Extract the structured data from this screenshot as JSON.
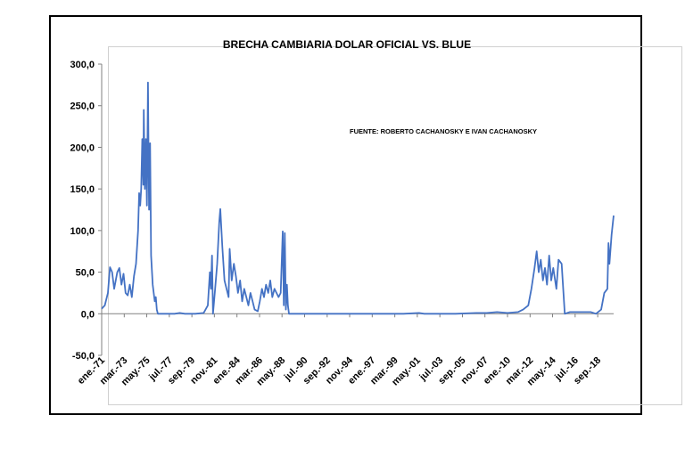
{
  "chart_data": {
    "type": "line",
    "title": "BRECHA CAMBIARIA  DOLAR OFICIAL VS. BLUE",
    "annotation": "FUENTE: ROBERTO CACHANOSKY E IVAN CACHANOSKY",
    "ylim": [
      -50,
      300
    ],
    "yticks": [
      "300,0",
      "250,0",
      "200,0",
      "150,0",
      "100,0",
      "50,0",
      "0,0",
      "-50,0"
    ],
    "ytick_values": [
      300,
      250,
      200,
      150,
      100,
      50,
      0,
      -50
    ],
    "xticks": [
      "ene.-71",
      "mar.-73",
      "may.-75",
      "jul.-77",
      "sep.-79",
      "nov.-81",
      "ene.-84",
      "mar.-86",
      "may.-88",
      "jul.-90",
      "sep.-92",
      "nov.-94",
      "ene.-97",
      "mar.-99",
      "may.-01",
      "jul.-03",
      "sep.-05",
      "nov.-07",
      "ene.-10",
      "mar.-12",
      "may.-14",
      "jul.-16",
      "sep.-18"
    ],
    "xtick_values": [
      1971.0,
      1973.17,
      1975.33,
      1977.5,
      1979.67,
      1981.83,
      1984.0,
      1986.17,
      1988.33,
      1990.5,
      1992.67,
      1994.83,
      1997.0,
      1999.17,
      2001.33,
      2003.5,
      2005.67,
      2007.83,
      2010.0,
      2012.17,
      2014.33,
      2016.5,
      2018.67
    ],
    "xlim": [
      1971.0,
      2020.2
    ],
    "grid": false,
    "series": [
      {
        "color": "#4472C4",
        "points": [
          [
            1971.0,
            6
          ],
          [
            1971.3,
            10
          ],
          [
            1971.6,
            25
          ],
          [
            1971.8,
            56
          ],
          [
            1972.0,
            50
          ],
          [
            1972.2,
            30
          ],
          [
            1972.5,
            50
          ],
          [
            1972.7,
            55
          ],
          [
            1972.9,
            35
          ],
          [
            1973.1,
            48
          ],
          [
            1973.3,
            25
          ],
          [
            1973.5,
            22
          ],
          [
            1973.7,
            35
          ],
          [
            1973.9,
            20
          ],
          [
            1974.1,
            45
          ],
          [
            1974.3,
            60
          ],
          [
            1974.5,
            100
          ],
          [
            1974.6,
            145
          ],
          [
            1974.7,
            130
          ],
          [
            1974.8,
            150
          ],
          [
            1974.9,
            210
          ],
          [
            1975.0,
            155
          ],
          [
            1975.05,
            245
          ],
          [
            1975.15,
            150
          ],
          [
            1975.25,
            210
          ],
          [
            1975.35,
            130
          ],
          [
            1975.45,
            278
          ],
          [
            1975.55,
            125
          ],
          [
            1975.6,
            130
          ],
          [
            1975.65,
            205
          ],
          [
            1975.75,
            70
          ],
          [
            1975.9,
            35
          ],
          [
            1976.1,
            15
          ],
          [
            1976.2,
            20
          ],
          [
            1976.3,
            5
          ],
          [
            1976.4,
            0
          ],
          [
            1977.0,
            0
          ],
          [
            1978.0,
            0
          ],
          [
            1978.5,
            1
          ],
          [
            1979.0,
            0
          ],
          [
            1980.0,
            0
          ],
          [
            1980.8,
            1
          ],
          [
            1981.2,
            10
          ],
          [
            1981.4,
            50
          ],
          [
            1981.5,
            30
          ],
          [
            1981.6,
            70
          ],
          [
            1981.7,
            0
          ],
          [
            1981.9,
            30
          ],
          [
            1982.1,
            60
          ],
          [
            1982.3,
            110
          ],
          [
            1982.4,
            126
          ],
          [
            1982.6,
            80
          ],
          [
            1982.8,
            40
          ],
          [
            1983.0,
            30
          ],
          [
            1983.2,
            20
          ],
          [
            1983.3,
            78
          ],
          [
            1983.5,
            40
          ],
          [
            1983.7,
            60
          ],
          [
            1983.9,
            45
          ],
          [
            1984.1,
            25
          ],
          [
            1984.3,
            40
          ],
          [
            1984.5,
            15
          ],
          [
            1984.7,
            30
          ],
          [
            1984.9,
            20
          ],
          [
            1985.1,
            10
          ],
          [
            1985.3,
            25
          ],
          [
            1985.5,
            15
          ],
          [
            1985.7,
            5
          ],
          [
            1986.0,
            3
          ],
          [
            1986.2,
            15
          ],
          [
            1986.4,
            30
          ],
          [
            1986.6,
            20
          ],
          [
            1986.8,
            35
          ],
          [
            1987.0,
            25
          ],
          [
            1987.2,
            40
          ],
          [
            1987.4,
            20
          ],
          [
            1987.6,
            30
          ],
          [
            1987.8,
            25
          ],
          [
            1988.0,
            20
          ],
          [
            1988.2,
            25
          ],
          [
            1988.4,
            99
          ],
          [
            1988.5,
            10
          ],
          [
            1988.6,
            97
          ],
          [
            1988.7,
            5
          ],
          [
            1988.8,
            35
          ],
          [
            1988.9,
            10
          ],
          [
            1989.0,
            0
          ],
          [
            1990.0,
            0
          ],
          [
            1995.0,
            0
          ],
          [
            2000.0,
            0
          ],
          [
            2001.5,
            1
          ],
          [
            2002.0,
            0
          ],
          [
            2005.0,
            0
          ],
          [
            2007.0,
            1
          ],
          [
            2008.0,
            1
          ],
          [
            2009.0,
            2
          ],
          [
            2010.0,
            1
          ],
          [
            2011.0,
            2
          ],
          [
            2011.5,
            5
          ],
          [
            2012.0,
            10
          ],
          [
            2012.3,
            30
          ],
          [
            2012.6,
            55
          ],
          [
            2012.8,
            75
          ],
          [
            2013.0,
            50
          ],
          [
            2013.2,
            65
          ],
          [
            2013.4,
            40
          ],
          [
            2013.6,
            55
          ],
          [
            2013.8,
            35
          ],
          [
            2014.0,
            70
          ],
          [
            2014.2,
            40
          ],
          [
            2014.4,
            55
          ],
          [
            2014.7,
            30
          ],
          [
            2014.9,
            65
          ],
          [
            2015.2,
            60
          ],
          [
            2015.5,
            0
          ],
          [
            2016.0,
            2
          ],
          [
            2017.0,
            2
          ],
          [
            2018.0,
            2
          ],
          [
            2018.5,
            0
          ],
          [
            2019.0,
            5
          ],
          [
            2019.3,
            25
          ],
          [
            2019.6,
            30
          ],
          [
            2019.7,
            85
          ],
          [
            2019.8,
            60
          ],
          [
            2020.0,
            95
          ],
          [
            2020.2,
            118
          ]
        ]
      }
    ]
  }
}
